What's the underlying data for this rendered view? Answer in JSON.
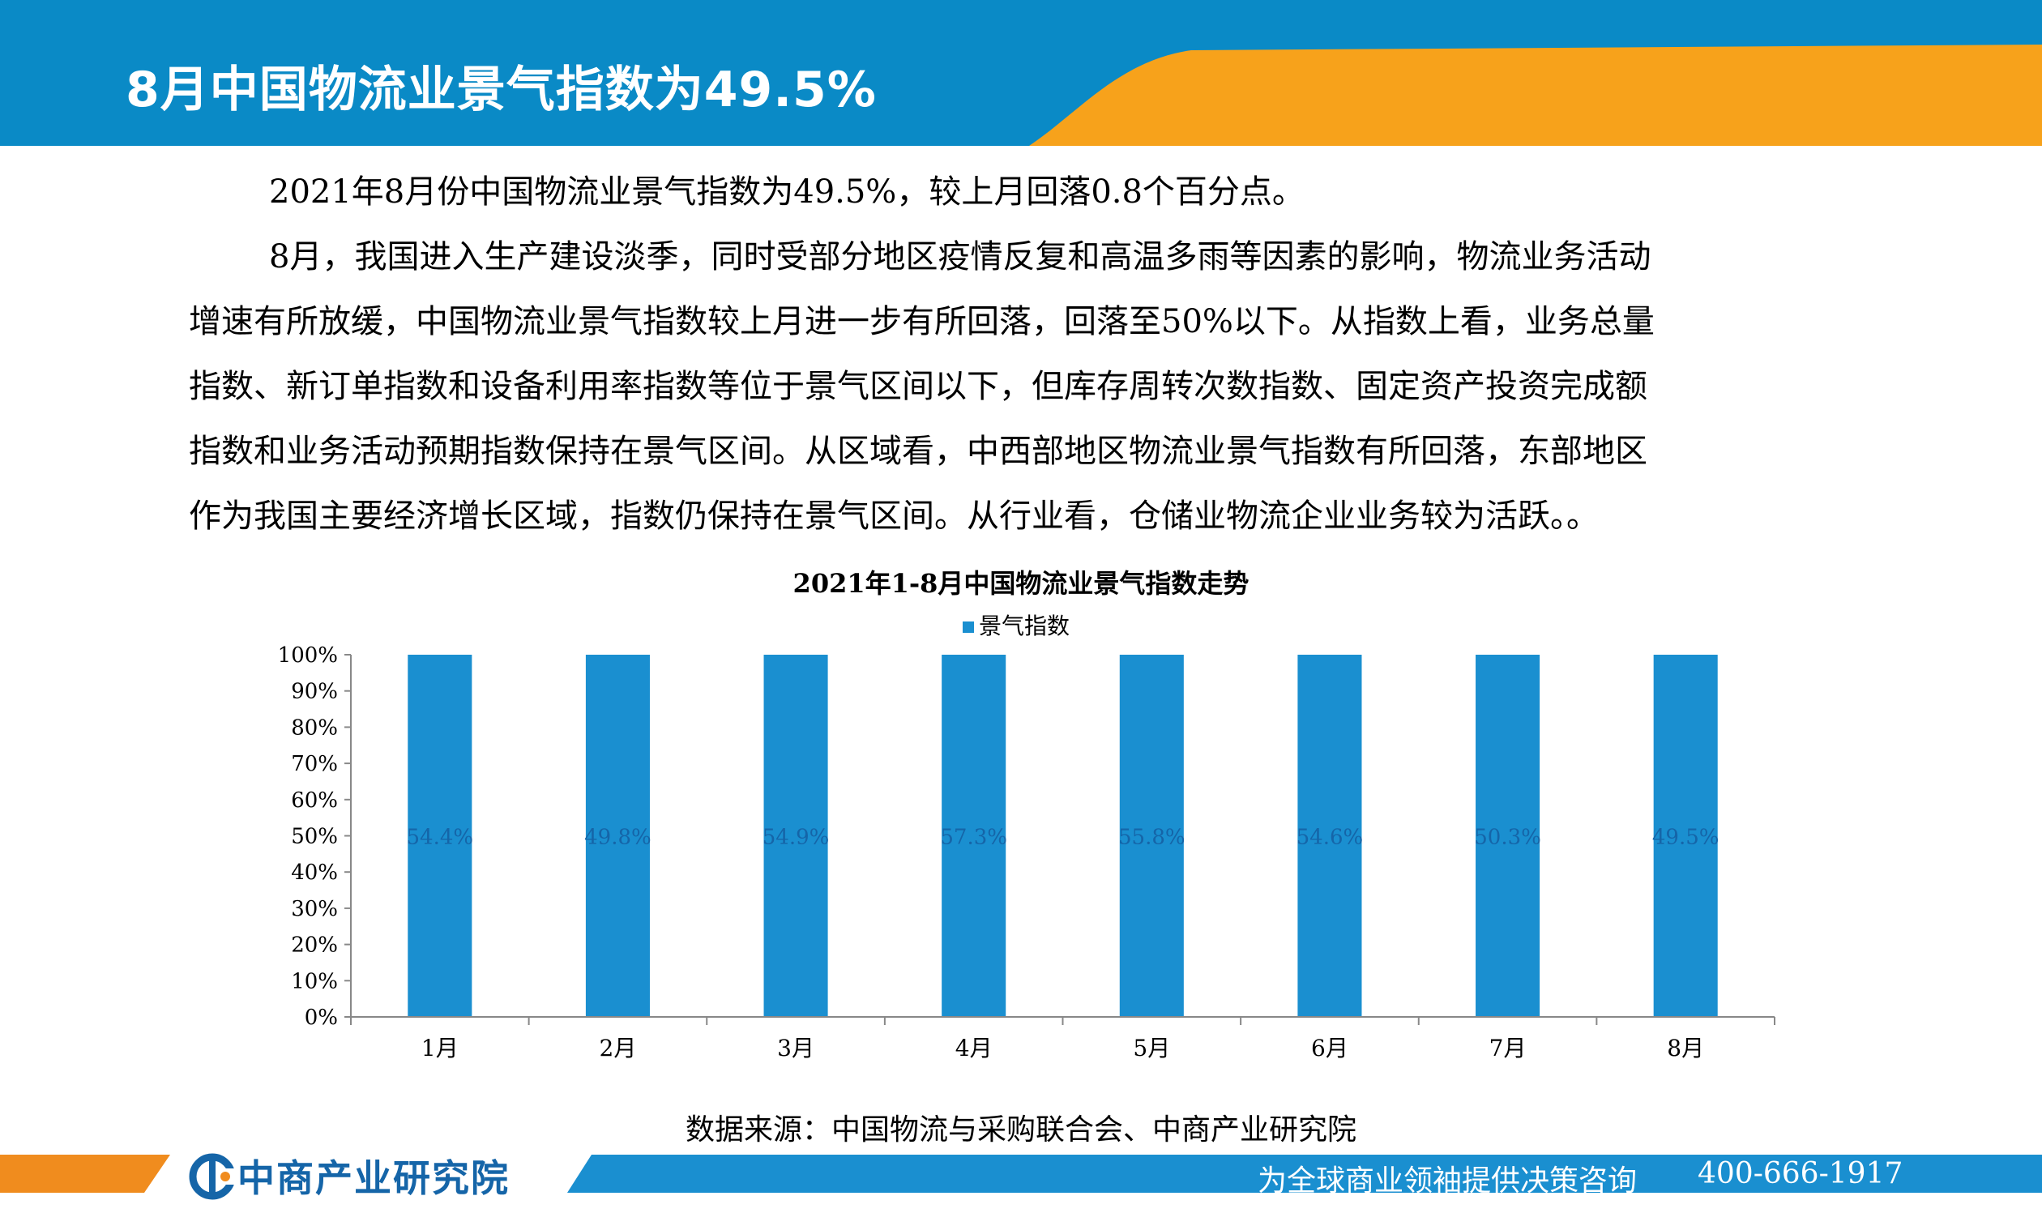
{
  "header": {
    "title": "8月中国物流业景气指数为49.5%"
  },
  "body": {
    "paragraph_lines": [
      "2021年8月份中国物流业景气指数为49.5%，较上月回落0.8个百分点。",
      "8月，我国进入生产建设淡季，同时受部分地区疫情反复和高温多雨等因素的影响，物流业务活动",
      "增速有所放缓，中国物流业景气指数较上月进一步有所回落，回落至50%以下。从指数上看，业务总量",
      "指数、新订单指数和设备利用率指数等位于景气区间以下，但库存周转次数指数、固定资产投资完成额",
      "指数和业务活动预期指数保持在景气区间。从区域看，中西部地区物流业景气指数有所回落，东部地区",
      "作为我国主要经济增长区域，指数仍保持在景气区间。从行业看，仓储业物流企业业务较为活跃。。"
    ]
  },
  "chart_data": {
    "type": "bar",
    "title": "2021年1-8月中国物流业景气指数走势",
    "legend_position": "top-center",
    "categories": [
      "1月",
      "2月",
      "3月",
      "4月",
      "5月",
      "6月",
      "7月",
      "8月"
    ],
    "series": [
      {
        "name": "景气指数",
        "values": [
          100,
          100,
          100,
          100,
          100,
          100,
          100,
          100
        ],
        "data_labels": [
          "54.4%",
          "49.8%",
          "54.9%",
          "57.3%",
          "55.8%",
          "54.6%",
          "50.3%",
          "49.5%"
        ],
        "color": "#1a8fd0"
      }
    ],
    "y_ticks": [
      "0%",
      "10%",
      "20%",
      "30%",
      "40%",
      "50%",
      "60%",
      "70%",
      "80%",
      "90%",
      "100%"
    ],
    "ylim": [
      0,
      100
    ],
    "grid": false
  },
  "source": "数据来源：中国物流与采购联合会、中商产业研究院",
  "footer": {
    "logo_text": "中商产业研究院",
    "slogan": "为全球商业领袖提供决策咨询",
    "phone": "400-666-1917"
  },
  "colors": {
    "header_blue": "#0a8ac6",
    "header_orange": "#f7a21b",
    "bar_blue": "#1a8fd0",
    "footer_blue": "#1a8fd0",
    "footer_orange": "#f08c1e",
    "logo_blue": "#1565a8"
  }
}
